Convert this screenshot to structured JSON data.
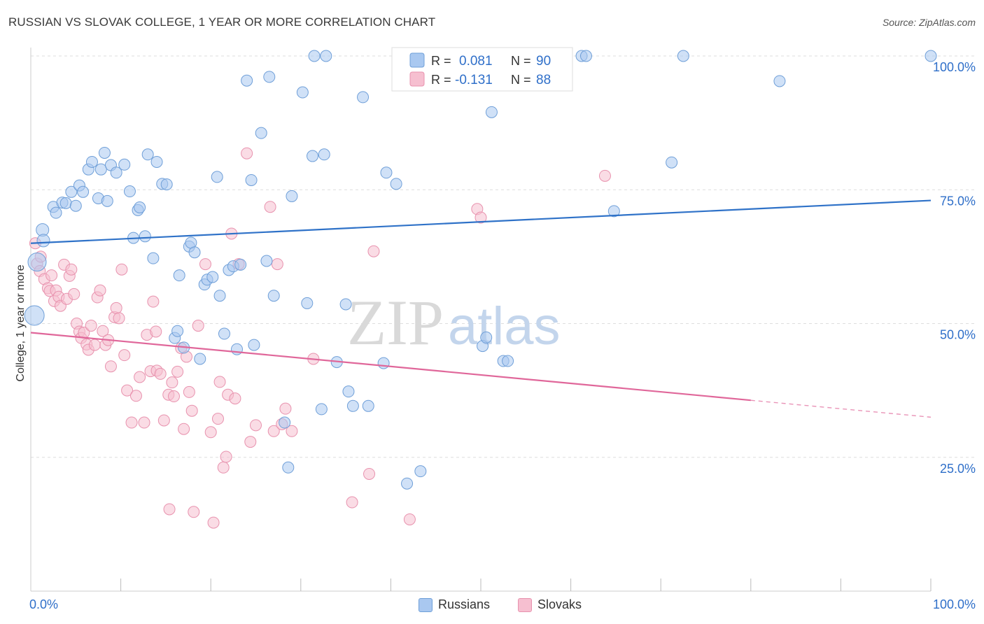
{
  "header": {
    "title": "RUSSIAN VS SLOVAK COLLEGE, 1 YEAR OR MORE CORRELATION CHART",
    "source": "Source: ZipAtlas.com"
  },
  "watermark": {
    "zip": "ZIP",
    "atlas": "atlas"
  },
  "colors": {
    "russians_fill": "#a9c8f0",
    "russians_stroke": "#6f9fd8",
    "russians_line": "#2f72c8",
    "slovaks_fill": "#f6bfd0",
    "slovaks_stroke": "#e892ae",
    "slovaks_line": "#e0679a",
    "value_text": "#2f6fc9",
    "grid": "#dedede"
  },
  "stats": {
    "russians": {
      "r_label": "R =",
      "r_value": "0.081",
      "n_label": "N =",
      "n_value": "90"
    },
    "slovaks": {
      "r_label": "R =",
      "r_value": "-0.131",
      "n_label": "N =",
      "n_value": "88"
    }
  },
  "chart_data": {
    "type": "scatter",
    "title": "RUSSIAN VS SLOVAK COLLEGE, 1 YEAR OR MORE CORRELATION CHART",
    "xlabel": "",
    "ylabel": "College, 1 year or more",
    "xlim": [
      0,
      100
    ],
    "ylim": [
      0,
      100
    ],
    "x_tick_labels": [
      "0.0%",
      "100.0%"
    ],
    "y_tick_labels": [
      {
        "value": 100,
        "label": "100.0%"
      },
      {
        "value": 75,
        "label": "75.0%"
      },
      {
        "value": 50,
        "label": "50.0%"
      },
      {
        "value": 25,
        "label": "25.0%"
      }
    ],
    "grid": true,
    "legend_position": "bottom-center",
    "series": [
      {
        "name": "Russians",
        "trend": {
          "x0": 0,
          "y0": 65.0,
          "x1": 100,
          "y1": 73.0,
          "dashed_from": null
        },
        "points": [
          [
            0.4,
            51.5,
            14
          ],
          [
            0.7,
            61.5,
            13
          ],
          [
            1.3,
            67.5,
            9
          ],
          [
            1.4,
            65.5,
            9
          ],
          [
            2.5,
            71.8,
            8
          ],
          [
            2.8,
            70.7,
            8
          ],
          [
            3.5,
            72.6,
            8
          ],
          [
            3.9,
            72.5,
            8
          ],
          [
            4.5,
            74.6,
            8
          ],
          [
            5.0,
            72.0,
            8
          ],
          [
            5.4,
            75.8,
            8
          ],
          [
            5.8,
            74.6,
            8
          ],
          [
            6.4,
            78.8,
            8
          ],
          [
            6.8,
            80.2,
            8
          ],
          [
            7.5,
            73.4,
            8
          ],
          [
            7.8,
            78.8,
            8
          ],
          [
            8.2,
            81.9,
            8
          ],
          [
            8.5,
            72.9,
            8
          ],
          [
            8.9,
            79.6,
            8
          ],
          [
            9.5,
            78.2,
            8
          ],
          [
            10.4,
            79.7,
            8
          ],
          [
            11.0,
            74.7,
            8
          ],
          [
            11.4,
            66.0,
            8
          ],
          [
            11.9,
            71.2,
            8
          ],
          [
            12.1,
            71.7,
            8
          ],
          [
            12.7,
            66.3,
            8
          ],
          [
            13.0,
            81.6,
            8
          ],
          [
            13.6,
            62.2,
            8
          ],
          [
            14.0,
            80.2,
            8
          ],
          [
            14.6,
            76.1,
            8
          ],
          [
            15.1,
            76.0,
            8
          ],
          [
            16.0,
            47.3,
            8
          ],
          [
            16.3,
            48.6,
            8
          ],
          [
            16.5,
            59.0,
            8
          ],
          [
            17.0,
            45.5,
            8
          ],
          [
            17.6,
            64.4,
            8
          ],
          [
            17.8,
            65.1,
            8
          ],
          [
            18.2,
            63.3,
            8
          ],
          [
            18.8,
            43.4,
            8
          ],
          [
            19.3,
            57.3,
            8
          ],
          [
            19.6,
            58.2,
            8
          ],
          [
            20.2,
            58.7,
            8
          ],
          [
            20.7,
            77.4,
            8
          ],
          [
            21.0,
            55.2,
            8
          ],
          [
            21.5,
            48.1,
            8
          ],
          [
            22.0,
            60.0,
            8
          ],
          [
            22.5,
            60.7,
            8
          ],
          [
            22.9,
            45.2,
            8
          ],
          [
            23.3,
            61.0,
            8
          ],
          [
            24.0,
            95.4,
            8
          ],
          [
            24.5,
            76.8,
            8
          ],
          [
            24.8,
            46.0,
            8
          ],
          [
            25.6,
            85.6,
            8
          ],
          [
            26.2,
            61.7,
            8
          ],
          [
            26.5,
            96.1,
            8
          ],
          [
            27.0,
            55.2,
            8
          ],
          [
            28.2,
            31.5,
            8
          ],
          [
            28.6,
            23.1,
            8
          ],
          [
            29.0,
            73.8,
            8
          ],
          [
            30.2,
            93.2,
            8
          ],
          [
            30.7,
            53.8,
            8
          ],
          [
            31.3,
            81.3,
            8
          ],
          [
            31.5,
            100.0,
            8
          ],
          [
            32.3,
            34.0,
            8
          ],
          [
            32.6,
            81.6,
            8
          ],
          [
            32.8,
            100.0,
            8
          ],
          [
            34.0,
            42.8,
            8
          ],
          [
            35.0,
            53.6,
            8
          ],
          [
            35.3,
            37.3,
            8
          ],
          [
            35.8,
            34.6,
            8
          ],
          [
            36.9,
            92.3,
            8
          ],
          [
            37.5,
            34.6,
            8
          ],
          [
            39.2,
            42.6,
            8
          ],
          [
            39.5,
            78.2,
            8
          ],
          [
            40.6,
            76.1,
            8
          ],
          [
            41.8,
            20.1,
            8
          ],
          [
            43.3,
            22.4,
            8
          ],
          [
            47.0,
            100.0,
            8
          ],
          [
            50.2,
            45.8,
            8
          ],
          [
            50.6,
            47.4,
            8
          ],
          [
            51.2,
            89.5,
            8
          ],
          [
            52.5,
            43.0,
            8
          ],
          [
            61.2,
            100.0,
            8
          ],
          [
            61.7,
            100.0,
            8
          ],
          [
            64.8,
            71.0,
            8
          ],
          [
            71.2,
            80.1,
            8
          ],
          [
            72.5,
            100.0,
            8
          ],
          [
            83.2,
            95.3,
            8
          ],
          [
            100.0,
            100.0,
            8
          ],
          [
            53.0,
            43.0,
            8
          ]
        ]
      },
      {
        "name": "Slovaks",
        "trend": {
          "x0": 0,
          "y0": 48.3,
          "x1": 100,
          "y1": 32.5,
          "dashed_from": 80
        },
        "points": [
          [
            0.5,
            65.0,
            8
          ],
          [
            0.7,
            61.2,
            8
          ],
          [
            1.0,
            59.8,
            8
          ],
          [
            1.1,
            62.5,
            8
          ],
          [
            1.5,
            58.3,
            8
          ],
          [
            1.9,
            56.6,
            8
          ],
          [
            2.1,
            56.1,
            8
          ],
          [
            2.3,
            59.0,
            8
          ],
          [
            2.6,
            54.2,
            8
          ],
          [
            2.8,
            56.2,
            8
          ],
          [
            3.1,
            55.0,
            8
          ],
          [
            3.3,
            53.3,
            8
          ],
          [
            3.7,
            61.0,
            8
          ],
          [
            4.0,
            54.6,
            8
          ],
          [
            4.3,
            58.9,
            8
          ],
          [
            4.5,
            60.1,
            8
          ],
          [
            4.8,
            55.5,
            8
          ],
          [
            5.1,
            50.0,
            8
          ],
          [
            5.4,
            48.5,
            8
          ],
          [
            5.6,
            47.3,
            8
          ],
          [
            5.9,
            48.3,
            8
          ],
          [
            6.2,
            46.1,
            8
          ],
          [
            6.4,
            45.1,
            8
          ],
          [
            6.7,
            49.6,
            8
          ],
          [
            7.1,
            46.0,
            8
          ],
          [
            7.4,
            54.9,
            8
          ],
          [
            7.7,
            56.2,
            8
          ],
          [
            8.0,
            48.6,
            8
          ],
          [
            8.3,
            46.0,
            8
          ],
          [
            8.6,
            46.9,
            8
          ],
          [
            8.9,
            42.0,
            8
          ],
          [
            9.3,
            51.2,
            8
          ],
          [
            9.5,
            52.9,
            8
          ],
          [
            9.8,
            51.0,
            8
          ],
          [
            10.1,
            60.1,
            8
          ],
          [
            10.4,
            44.1,
            8
          ],
          [
            10.7,
            37.5,
            8
          ],
          [
            11.2,
            31.5,
            8
          ],
          [
            11.7,
            36.5,
            8
          ],
          [
            12.1,
            40.0,
            8
          ],
          [
            12.6,
            31.5,
            8
          ],
          [
            12.9,
            47.9,
            8
          ],
          [
            13.3,
            41.1,
            8
          ],
          [
            13.6,
            54.1,
            8
          ],
          [
            14.0,
            41.2,
            8
          ],
          [
            14.4,
            40.6,
            8
          ],
          [
            14.8,
            31.9,
            8
          ],
          [
            15.3,
            36.7,
            8
          ],
          [
            15.7,
            39.0,
            8
          ],
          [
            15.9,
            36.4,
            8
          ],
          [
            16.3,
            41.0,
            8
          ],
          [
            16.7,
            45.4,
            8
          ],
          [
            17.0,
            30.3,
            8
          ],
          [
            17.3,
            43.8,
            8
          ],
          [
            17.6,
            37.2,
            8
          ],
          [
            17.9,
            33.7,
            8
          ],
          [
            18.1,
            14.8,
            8
          ],
          [
            18.6,
            49.6,
            8
          ],
          [
            19.4,
            61.1,
            8
          ],
          [
            20.0,
            29.7,
            8
          ],
          [
            20.3,
            12.8,
            8
          ],
          [
            20.8,
            32.2,
            8
          ],
          [
            21.0,
            39.1,
            8
          ],
          [
            21.4,
            23.1,
            8
          ],
          [
            21.7,
            25.1,
            8
          ],
          [
            21.9,
            36.7,
            8
          ],
          [
            22.3,
            66.8,
            8
          ],
          [
            22.7,
            36.0,
            8
          ],
          [
            23.1,
            61.1,
            8
          ],
          [
            24.0,
            81.8,
            8
          ],
          [
            24.4,
            27.9,
            8
          ],
          [
            25.0,
            31.0,
            8
          ],
          [
            26.6,
            71.8,
            8
          ],
          [
            27.0,
            29.9,
            8
          ],
          [
            27.4,
            61.1,
            8
          ],
          [
            27.9,
            31.2,
            8
          ],
          [
            28.3,
            34.1,
            8
          ],
          [
            29.0,
            29.9,
            8
          ],
          [
            31.4,
            43.4,
            8
          ],
          [
            35.7,
            16.6,
            8
          ],
          [
            37.6,
            21.9,
            8
          ],
          [
            38.1,
            63.5,
            8
          ],
          [
            42.1,
            13.4,
            8
          ],
          [
            49.6,
            71.4,
            8
          ],
          [
            50.0,
            69.8,
            8
          ],
          [
            63.8,
            77.6,
            8
          ],
          [
            15.4,
            15.3,
            8
          ],
          [
            13.9,
            48.5,
            8
          ]
        ]
      }
    ]
  }
}
